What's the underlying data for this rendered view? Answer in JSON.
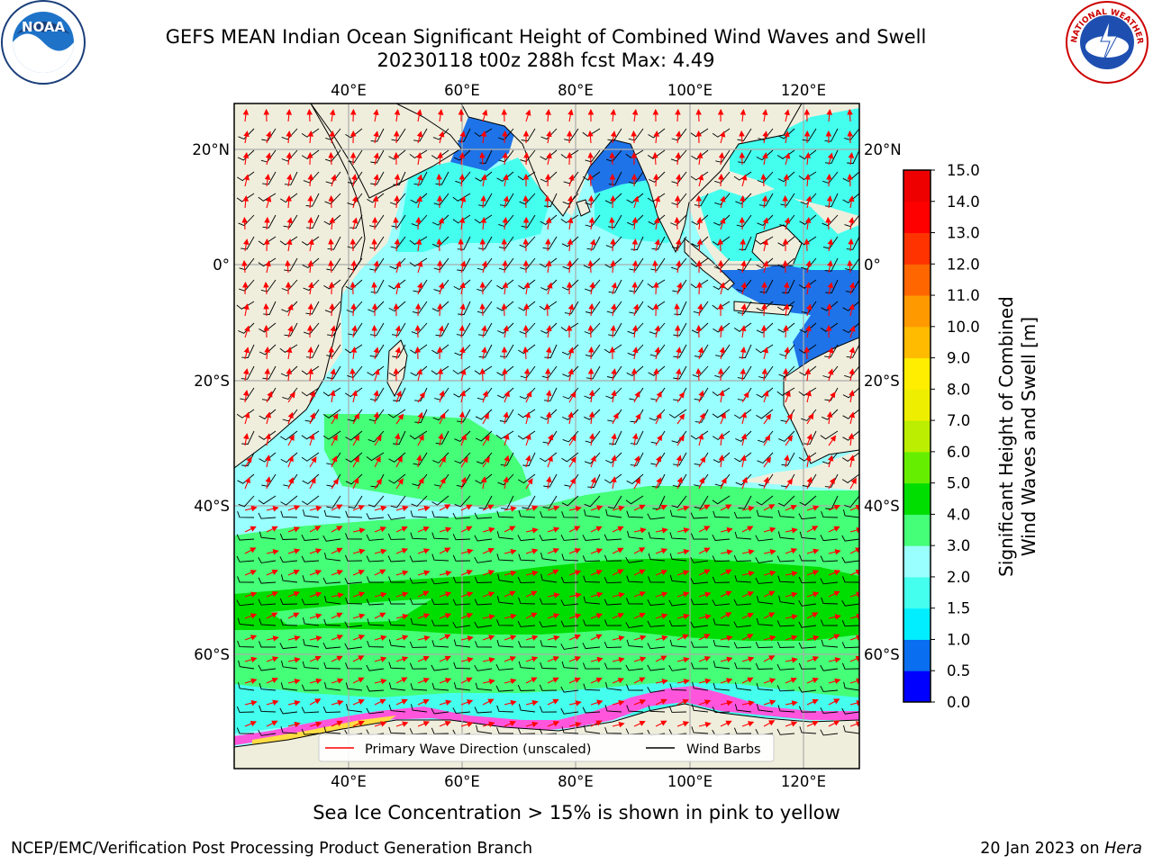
{
  "title": {
    "line1": "GEFS MEAN Indian Ocean Significant Height of Combined Wind Waves and Swell",
    "line2": "20230118 t00z 288h fcst   Max: 4.49"
  },
  "map": {
    "lon_range": [
      20,
      130
    ],
    "lat_range": [
      -75,
      27
    ],
    "lon_ticks": [
      "40°E",
      "60°E",
      "80°E",
      "100°E",
      "120°E"
    ],
    "lat_ticks": [
      "20°N",
      "0°",
      "20°S",
      "40°S",
      "60°S"
    ],
    "land_color": "#efeedc",
    "grid": true
  },
  "colorbar": {
    "label_line1": "Significant Height of Combined",
    "label_line2": "Wind Waves and Swell [m]",
    "ticks": [
      "0.0",
      "0.5",
      "1.0",
      "1.5",
      "2.0",
      "3.0",
      "4.0",
      "5.0",
      "6.0",
      "7.0",
      "8.0",
      "9.0",
      "10.0",
      "11.0",
      "12.0",
      "13.0",
      "14.0",
      "15.0"
    ],
    "colors": [
      "#0000ff",
      "#0a6ef0",
      "#00eeff",
      "#44ffee",
      "#99ffff",
      "#44ff77",
      "#00dd00",
      "#66ee00",
      "#bbee00",
      "#eeee00",
      "#ffee00",
      "#ffbb00",
      "#ff9900",
      "#ff6600",
      "#ff3300",
      "#ff0000",
      "#ee0000"
    ]
  },
  "legend": {
    "wave_label": "Primary Wave Direction (unscaled)",
    "wind_label": "Wind Barbs",
    "wave_color": "#ff0000",
    "wind_color": "#000000"
  },
  "footnote": "Sea Ice Concentration > 15% is shown in pink to yellow",
  "credit_left": "NCEP/EMC/Verification Post Processing Product Generation Branch",
  "credit_right_prefix": "20 Jan 2023 on",
  "credit_right_host": "Hera",
  "logos": {
    "noaa_text": "NOAA",
    "nws_text": "NATIONAL WEATHER SERVICE"
  }
}
